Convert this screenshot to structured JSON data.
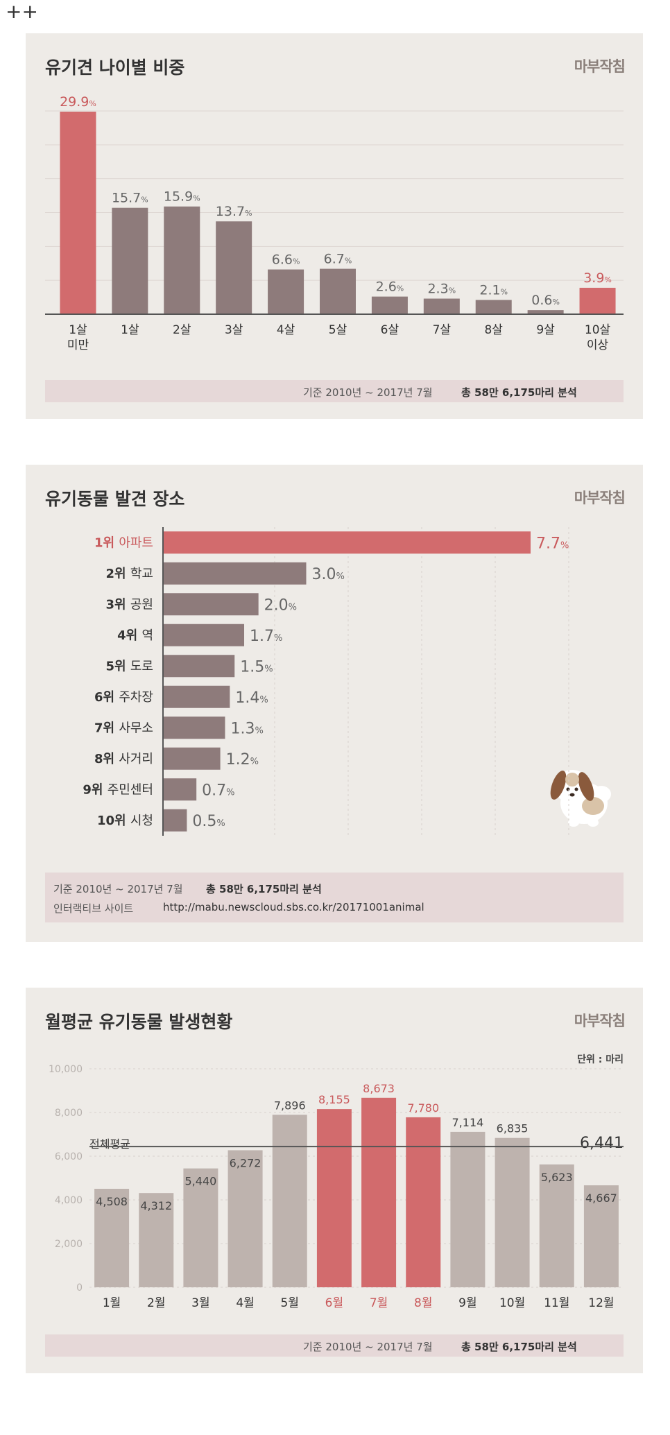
{
  "page_mark": "++",
  "brand": "마부작침",
  "charts": [
    {
      "title": "유기견 나이별 비중",
      "footer_period": "기준 2010년 ~ 2017년 7월",
      "footer_total": "총 58만 6,175마리 분석"
    },
    {
      "title": "유기동물 발견 장소",
      "footer_period": "기준 2010년 ~ 2017년 7월",
      "footer_total": "총 58만 6,175마리 분석",
      "footer_site_label": "인터랙티브 사이트",
      "footer_site_url": "http://mabu.newscloud.sbs.co.kr/20171001animal"
    },
    {
      "title": "월평균 유기동물 발생현황",
      "unit": "단위 : 마리",
      "avg_label": "전체평균",
      "avg_value_text": "6,441",
      "footer_period": "기준 2010년 ~ 2017년 7월",
      "footer_total": "총 58만 6,175마리 분석"
    }
  ],
  "colors": {
    "highlight": "#d26b6d",
    "gray_bar": "#8e7b7b",
    "light_bar": "#beb3ae",
    "card_bg": "#eeebe7"
  },
  "chart_data": [
    {
      "type": "bar",
      "categories": [
        [
          "1살",
          "미만"
        ],
        [
          "1살"
        ],
        [
          "2살"
        ],
        [
          "3살"
        ],
        [
          "4살"
        ],
        [
          "5살"
        ],
        [
          "6살"
        ],
        [
          "7살"
        ],
        [
          "8살"
        ],
        [
          "9살"
        ],
        [
          "10살",
          "이상"
        ]
      ],
      "values": [
        29.9,
        15.7,
        15.9,
        13.7,
        6.6,
        6.7,
        2.6,
        2.3,
        2.1,
        0.6,
        3.9
      ],
      "value_labels": [
        "29.9",
        "15.7",
        "15.9",
        "13.7",
        "6.6",
        "6.7",
        "2.6",
        "2.3",
        "2.1",
        "0.6",
        "3.9"
      ],
      "unit_suffix": "%",
      "highlight": [
        0,
        10
      ],
      "ylim": [
        0,
        30
      ],
      "grid": true
    },
    {
      "type": "bar",
      "orientation": "horizontal",
      "categories": [
        [
          "1위",
          "아파트"
        ],
        [
          "2위",
          "학교"
        ],
        [
          "3위",
          "공원"
        ],
        [
          "4위",
          "역"
        ],
        [
          "5위",
          "도로"
        ],
        [
          "6위",
          "주차장"
        ],
        [
          "7위",
          "사무소"
        ],
        [
          "8위",
          "사거리"
        ],
        [
          "9위",
          "주민센터"
        ],
        [
          "10위",
          "시청"
        ]
      ],
      "values": [
        7.7,
        3.0,
        2.0,
        1.7,
        1.5,
        1.4,
        1.3,
        1.2,
        0.7,
        0.5
      ],
      "value_labels": [
        "7.7",
        "3.0",
        "2.0",
        "1.7",
        "1.5",
        "1.4",
        "1.3",
        "1.2",
        "0.7",
        "0.5"
      ],
      "unit_suffix": "%",
      "highlight": [
        0
      ],
      "xlim": [
        0,
        7.7
      ],
      "grid": true
    },
    {
      "type": "bar",
      "categories": [
        "1월",
        "2월",
        "3월",
        "4월",
        "5월",
        "6월",
        "7월",
        "8월",
        "9월",
        "10월",
        "11월",
        "12월"
      ],
      "values": [
        4508,
        4312,
        5440,
        6272,
        7896,
        8155,
        8673,
        7780,
        7114,
        6835,
        5623,
        4667
      ],
      "value_labels": [
        "4,508",
        "4,312",
        "5,440",
        "6,272",
        "7,896",
        "8,155",
        "8,673",
        "7,780",
        "7,114",
        "6,835",
        "5,623",
        "4,667"
      ],
      "highlight": [
        5,
        6,
        7
      ],
      "average": 6441,
      "ylim": [
        0,
        10000
      ],
      "yticks": [
        "0",
        "2,000",
        "4,000",
        "6,000",
        "8,000",
        "10,000"
      ],
      "ytick_values": [
        0,
        2000,
        4000,
        6000,
        8000,
        10000
      ],
      "grid": true
    }
  ]
}
